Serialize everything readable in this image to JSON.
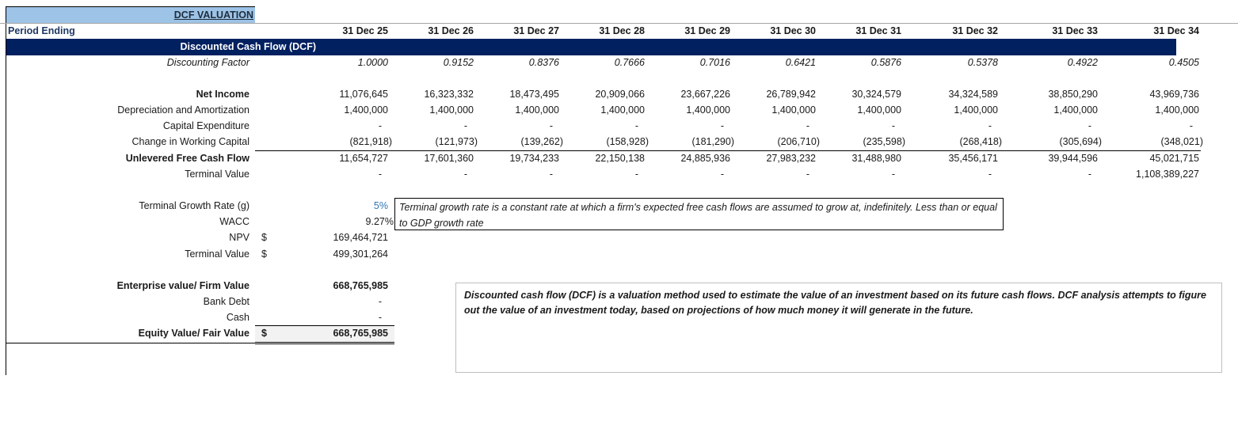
{
  "title": "DCF VALUATION",
  "period_label": "Period Ending",
  "periods": [
    "31 Dec 25",
    "31 Dec 26",
    "31 Dec 27",
    "31 Dec 28",
    "31 Dec 29",
    "31 Dec 30",
    "31 Dec 31",
    "31 Dec 32",
    "31 Dec 33",
    "31 Dec 34"
  ],
  "section_header": "Discounted Cash Flow (DCF)",
  "rows": {
    "discounting_factor": {
      "label": "Discounting Factor",
      "values": [
        "1.0000",
        "0.9152",
        "0.8376",
        "0.7666",
        "0.7016",
        "0.6421",
        "0.5876",
        "0.5378",
        "0.4922",
        "0.4505"
      ]
    },
    "net_income": {
      "label": "Net Income",
      "values": [
        "11,076,645",
        "16,323,332",
        "18,473,495",
        "20,909,066",
        "23,667,226",
        "26,789,942",
        "30,324,579",
        "34,324,589",
        "38,850,290",
        "43,969,736"
      ]
    },
    "depreciation": {
      "label": "Depreciation and Amortization",
      "values": [
        "1,400,000",
        "1,400,000",
        "1,400,000",
        "1,400,000",
        "1,400,000",
        "1,400,000",
        "1,400,000",
        "1,400,000",
        "1,400,000",
        "1,400,000"
      ]
    },
    "capex": {
      "label": "Capital Expenditure",
      "values": [
        "-",
        "-",
        "-",
        "-",
        "-",
        "-",
        "-",
        "-",
        "-",
        "-"
      ]
    },
    "working_capital": {
      "label": "Change in Working Capital",
      "values": [
        "(821,918)",
        "(121,973)",
        "(139,262)",
        "(158,928)",
        "(181,290)",
        "(206,710)",
        "(235,598)",
        "(268,418)",
        "(305,694)",
        "(348,021)"
      ]
    },
    "ufcf": {
      "label": "Unlevered Free Cash Flow",
      "values": [
        "11,654,727",
        "17,601,360",
        "19,734,233",
        "22,150,138",
        "24,885,936",
        "27,983,232",
        "31,488,980",
        "35,456,171",
        "39,944,596",
        "45,021,715"
      ]
    },
    "terminal_value": {
      "label": "Terminal Value",
      "values": [
        "-",
        "-",
        "-",
        "-",
        "-",
        "-",
        "-",
        "-",
        "-",
        "1,108,389,227"
      ]
    }
  },
  "assumptions": {
    "growth": {
      "label": "Terminal Growth Rate (g)",
      "value": "5%"
    },
    "wacc": {
      "label": "WACC",
      "value": "9.27%"
    },
    "npv": {
      "label": "NPV",
      "currency": "$",
      "value": "169,464,721"
    },
    "tv": {
      "label": "Terminal Value",
      "currency": "$",
      "value": "499,301,264"
    }
  },
  "growth_note": "Terminal growth rate is a constant rate at which a firm's expected free cash flows are assumed to grow at, indefinitely. Less than or equal to GDP growth rate",
  "valuation": {
    "ev": {
      "label": "Enterprise value/ Firm Value",
      "value": "668,765,985"
    },
    "debt": {
      "label": "Bank Debt",
      "value": "-"
    },
    "cash": {
      "label": "Cash",
      "value": "-"
    },
    "equity": {
      "label": "Equity Value/ Fair Value",
      "currency": "$",
      "value": "668,765,985"
    }
  },
  "dcf_description": "Discounted cash flow (DCF) is a valuation method used to estimate the value of an investment based on its future cash flows. DCF analysis attempts to figure out the value of an investment today, based on projections of how much money it will generate in the future.",
  "colors": {
    "navy": "#002060",
    "title_bg": "#9DC3E6",
    "input_blue": "#2E75B6"
  }
}
